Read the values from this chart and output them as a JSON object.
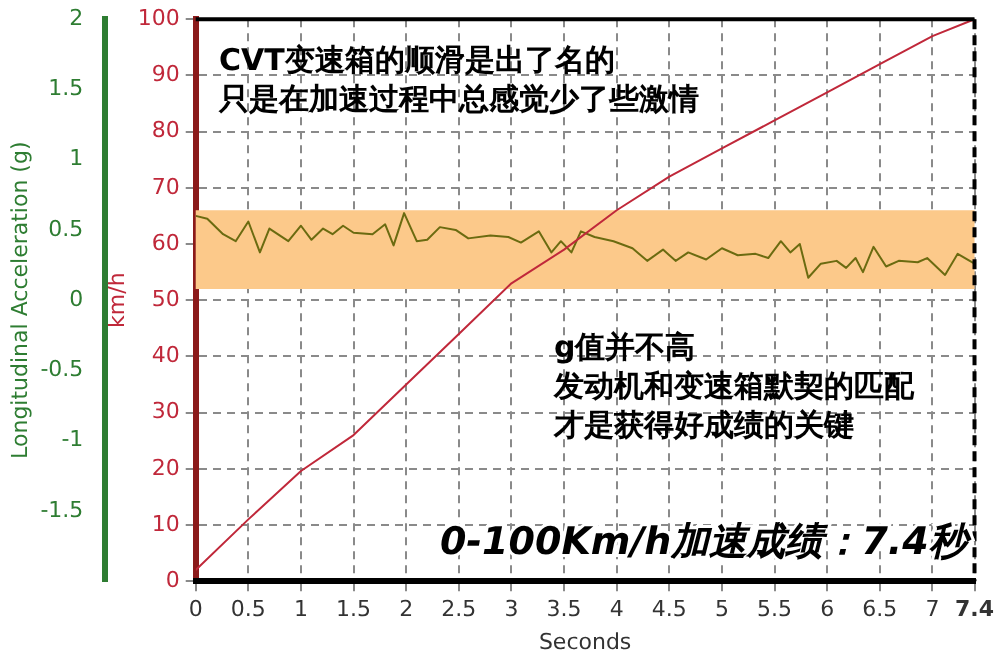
{
  "chart_data": {
    "type": "line",
    "xlabel": "Seconds",
    "ylabel": "km/h",
    "y2label": "Longitudinal Acceleration (g)",
    "xlim": [
      0,
      7.4
    ],
    "xticks": [
      0,
      0.5,
      1,
      1.5,
      2,
      2.5,
      3,
      3.5,
      4,
      4.5,
      5,
      5.5,
      6,
      6.5,
      7,
      7.4
    ],
    "ylim": [
      0,
      100
    ],
    "yticks": [
      0,
      10,
      20,
      30,
      40,
      50,
      60,
      70,
      80,
      90,
      100
    ],
    "y2lim": [
      -2,
      2
    ],
    "y2ticks": [
      -1.5,
      -1,
      -0.5,
      0,
      0.5,
      1,
      1.5,
      2
    ],
    "grid": true,
    "legend": false,
    "marker": "none",
    "line_style": "solid",
    "series": [
      {
        "color": "#c0283a",
        "x": [
          0,
          0.5,
          1,
          1.5,
          2,
          2.5,
          3,
          3.5,
          4,
          4.5,
          5,
          5.5,
          6,
          6.5,
          7,
          7.4
        ],
        "values": [
          2,
          11,
          19.6,
          26,
          35,
          44,
          53,
          59,
          66,
          72,
          77,
          82,
          87,
          92,
          97,
          100
        ]
      },
      {
        "color": "#6b6b10",
        "axis": "y2",
        "x": [
          0,
          0.11,
          0.26,
          0.38,
          0.5,
          0.61,
          0.7,
          0.88,
          1,
          1.1,
          1.21,
          1.3,
          1.4,
          1.5,
          1.68,
          1.8,
          1.88,
          1.98,
          2.1,
          2.2,
          2.32,
          2.47,
          2.59,
          2.8,
          2.97,
          3.09,
          3.26,
          3.38,
          3.47,
          3.57,
          3.66,
          3.79,
          3.97,
          4.15,
          4.29,
          4.44,
          4.56,
          4.68,
          4.85,
          5,
          5.15,
          5.32,
          5.44,
          5.56,
          5.65,
          5.74,
          5.82,
          5.94,
          6.09,
          6.18,
          6.27,
          6.34,
          6.44,
          6.56,
          6.68,
          6.86,
          6.95,
          7.12,
          7.24,
          7.4
        ],
        "values": [
          0.6,
          0.58,
          0.47,
          0.42,
          0.56,
          0.34,
          0.51,
          0.42,
          0.53,
          0.43,
          0.51,
          0.47,
          0.53,
          0.48,
          0.47,
          0.54,
          0.39,
          0.62,
          0.42,
          0.43,
          0.52,
          0.5,
          0.44,
          0.46,
          0.45,
          0.41,
          0.49,
          0.34,
          0.42,
          0.34,
          0.49,
          0.45,
          0.42,
          0.37,
          0.28,
          0.36,
          0.28,
          0.34,
          0.29,
          0.37,
          0.32,
          0.33,
          0.3,
          0.42,
          0.34,
          0.4,
          0.16,
          0.26,
          0.28,
          0.23,
          0.3,
          0.2,
          0.38,
          0.24,
          0.28,
          0.27,
          0.3,
          0.18,
          0.33,
          0.26
        ]
      }
    ],
    "bands": [
      {
        "axis": "y",
        "from": 52,
        "to": 66,
        "color": "#fcc98a"
      }
    ],
    "annotations": [
      "CVT变速箱的顺滑是出了名的",
      "只是在加速过程中总感觉少了些激情",
      "g值并不高",
      "发动机和变速箱默契的匹配",
      "才是获得好成绩的关键",
      "0-100Km/h加速成绩：7.4秒"
    ]
  }
}
